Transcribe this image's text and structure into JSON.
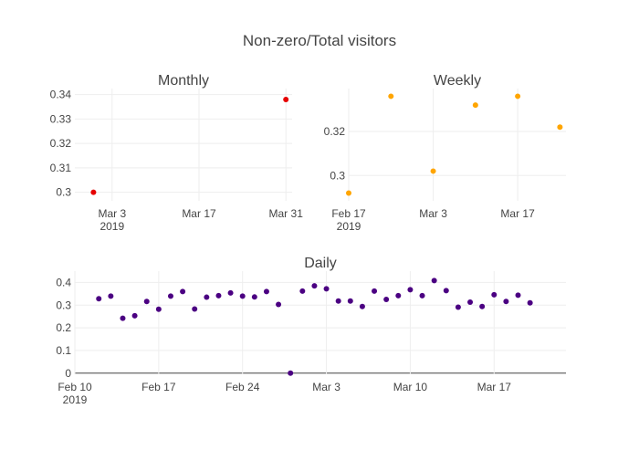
{
  "title": "Non-zero/Total visitors",
  "chart_data": [
    {
      "type": "scatter",
      "title": "Monthly",
      "color": "#e60000",
      "x": [
        "2019-02-28",
        "2019-03-31"
      ],
      "y": [
        0.3,
        0.338
      ],
      "xlim": [
        "2019-02-25",
        "2019-04-01"
      ],
      "ylim": [
        0.2965,
        0.3425
      ],
      "x_ticks": [
        "2019-03-03",
        "2019-03-17",
        "2019-03-31"
      ],
      "x_tick_labels": [
        "Mar 3",
        "Mar 17",
        "Mar 31"
      ],
      "x_tick_sublabels": [
        "2019",
        "",
        ""
      ],
      "y_ticks": [
        0.3,
        0.31,
        0.32,
        0.33,
        0.34
      ],
      "y_tick_labels": [
        "0.3",
        "0.31",
        "0.32",
        "0.33",
        "0.34"
      ],
      "grid": true,
      "legend": "none"
    },
    {
      "type": "scatter",
      "title": "Weekly",
      "color": "#ffa500",
      "x": [
        "2019-02-17",
        "2019-02-24",
        "2019-03-03",
        "2019-03-10",
        "2019-03-17",
        "2019-03-24"
      ],
      "y": [
        0.292,
        0.336,
        0.302,
        0.332,
        0.336,
        0.322
      ],
      "xlim": [
        "2019-02-17",
        "2019-03-25"
      ],
      "ylim": [
        0.2885,
        0.3395
      ],
      "x_ticks": [
        "2019-02-17",
        "2019-03-03",
        "2019-03-17"
      ],
      "x_tick_labels": [
        "Feb 17",
        "Mar 3",
        "Mar 17"
      ],
      "x_tick_sublabels": [
        "2019",
        "",
        ""
      ],
      "y_ticks": [
        0.3,
        0.32
      ],
      "y_tick_labels": [
        "0.3",
        "0.32"
      ],
      "grid": true,
      "legend": "none"
    },
    {
      "type": "scatter",
      "title": "Daily",
      "color": "#4b0082",
      "x": [
        "2019-02-12",
        "2019-02-13",
        "2019-02-14",
        "2019-02-15",
        "2019-02-16",
        "2019-02-17",
        "2019-02-18",
        "2019-02-19",
        "2019-02-20",
        "2019-02-21",
        "2019-02-22",
        "2019-02-23",
        "2019-02-24",
        "2019-02-25",
        "2019-02-26",
        "2019-02-27",
        "2019-02-28",
        "2019-03-01",
        "2019-03-02",
        "2019-03-03",
        "2019-03-04",
        "2019-03-05",
        "2019-03-06",
        "2019-03-07",
        "2019-03-08",
        "2019-03-09",
        "2019-03-10",
        "2019-03-11",
        "2019-03-12",
        "2019-03-13",
        "2019-03-14",
        "2019-03-15",
        "2019-03-16",
        "2019-03-17",
        "2019-03-18",
        "2019-03-19",
        "2019-03-20"
      ],
      "y": [
        0.328,
        0.34,
        0.242,
        0.253,
        0.316,
        0.282,
        0.34,
        0.36,
        0.283,
        0.335,
        0.342,
        0.354,
        0.34,
        0.336,
        0.36,
        0.303,
        0.0,
        0.362,
        0.385,
        0.372,
        0.318,
        0.318,
        0.294,
        0.362,
        0.325,
        0.342,
        0.368,
        0.342,
        0.408,
        0.364,
        0.291,
        0.313,
        0.294,
        0.346,
        0.316,
        0.344,
        0.31
      ],
      "xlim": [
        "2019-02-10",
        "2019-03-23"
      ],
      "ylim": [
        -0.005,
        0.45
      ],
      "x_ticks": [
        "2019-02-10",
        "2019-02-17",
        "2019-02-24",
        "2019-03-03",
        "2019-03-10",
        "2019-03-17"
      ],
      "x_tick_labels": [
        "Feb 10",
        "Feb 17",
        "Feb 24",
        "Mar 3",
        "Mar 10",
        "Mar 17"
      ],
      "x_tick_sublabels": [
        "2019",
        "",
        "",
        "",
        "",
        ""
      ],
      "y_ticks": [
        0,
        0.1,
        0.2,
        0.3,
        0.4
      ],
      "y_tick_labels": [
        "0",
        "0.1",
        "0.2",
        "0.3",
        "0.4"
      ],
      "grid": true,
      "legend": "none"
    }
  ]
}
